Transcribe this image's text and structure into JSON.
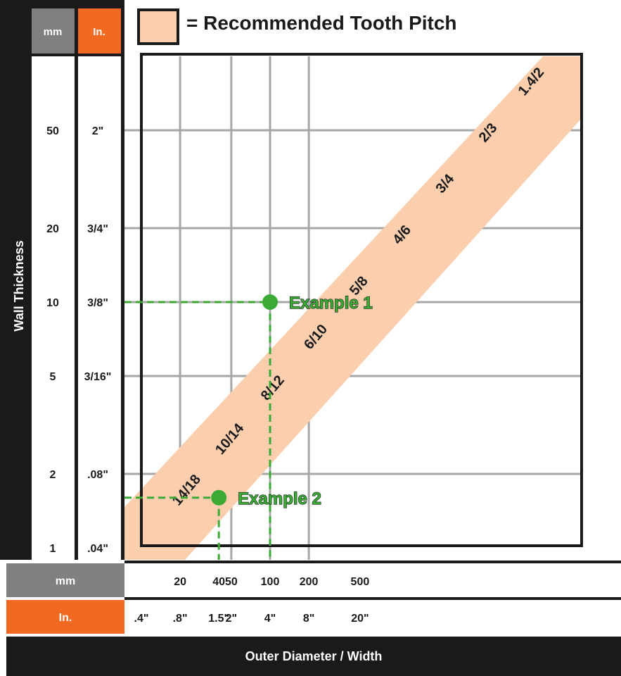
{
  "legend": {
    "text": "= Recommended Tooth Pitch",
    "swatch_color": "#fbcfae"
  },
  "left_axis": {
    "title": "Wall Thickness",
    "mm_header": "mm",
    "in_header": "In."
  },
  "bottom_axis": {
    "title": "Outer Diameter / Width",
    "mm_label": "mm",
    "in_label": "In."
  },
  "colors": {
    "frame": "#1a1a1a",
    "mm_header_bg": "#808080",
    "in_header_bg": "#f26a21",
    "band": "#fbcfae",
    "grid": "#a6a6a6",
    "example": "#3aaa35"
  },
  "chart_data": {
    "type": "line",
    "title": "= Recommended Tooth Pitch",
    "xlabel": "Outer Diameter / Width",
    "ylabel": "Wall Thickness",
    "x_scale": "log",
    "y_scale": "log",
    "xlim_mm": [
      10,
      1000
    ],
    "ylim_mm": [
      1,
      100
    ],
    "x_ticks": [
      {
        "mm": "",
        "in": ".4\""
      },
      {
        "mm": "20",
        "in": ".8\""
      },
      {
        "mm": "40",
        "in": "1.5\""
      },
      {
        "mm": "50",
        "in": "2\""
      },
      {
        "mm": "100",
        "in": "4\""
      },
      {
        "mm": "200",
        "in": "8\""
      },
      {
        "mm": "500",
        "in": "20\""
      }
    ],
    "y_ticks": [
      {
        "mm": "1",
        "in": ".04\""
      },
      {
        "mm": "2",
        "in": ".08\""
      },
      {
        "mm": "5",
        "in": "3/16\""
      },
      {
        "mm": "10",
        "in": "3/8\""
      },
      {
        "mm": "20",
        "in": "3/4\""
      },
      {
        "mm": "50",
        "in": "2\""
      }
    ],
    "band_labels": [
      "14/18",
      "10/14",
      "8/12",
      "6/10",
      "5/8",
      "4/6",
      "3/4",
      "2/3",
      "1.4/2"
    ],
    "examples": [
      {
        "label": "Example 1",
        "x_mm": 100,
        "y_mm": 10
      },
      {
        "label": "Example 2",
        "x_mm": 40,
        "y_mm": 1.6
      }
    ]
  }
}
